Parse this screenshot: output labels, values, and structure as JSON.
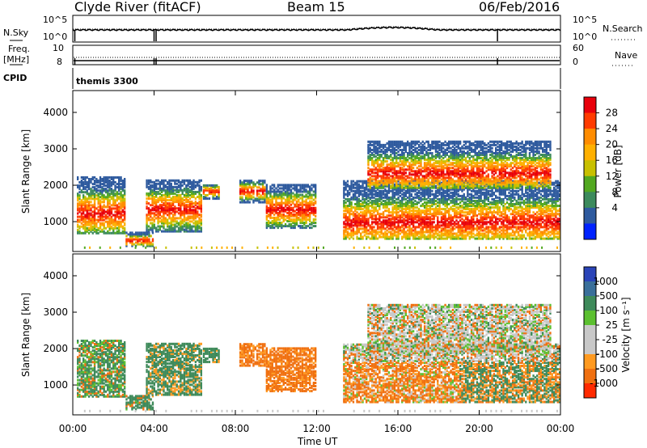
{
  "header": {
    "station": "Clyde River (fitACF)",
    "beam": "Beam 15",
    "date": "06/Feb/2016"
  },
  "top_panels": {
    "nsky_label": "N.Sky",
    "nsky_ticks": [
      "10^5",
      "10^0"
    ],
    "nsearch_label": "N.Search",
    "nsearch_ticks": [
      "10^5",
      "10^0"
    ],
    "freq_label": "Freq.",
    "freq_unit": "[MHz]",
    "freq_ticks": [
      "10",
      "8"
    ],
    "nave_label": "Nave",
    "nave_ticks": [
      "60",
      "0"
    ],
    "cpid_label": "CPID",
    "cpid_value": "themis 3300"
  },
  "time_axis": {
    "label": "Time UT",
    "ticks": [
      "00:00",
      "04:00",
      "08:00",
      "12:00",
      "16:00",
      "20:00",
      "00:00"
    ]
  },
  "chart_data": [
    {
      "type": "heatmap",
      "panel": "power",
      "ylabel": "Slant Range [km]",
      "yticks": [
        "1000",
        "2000",
        "3000",
        "4000"
      ],
      "ylim": [
        180,
        4600
      ],
      "xlim_hours": [
        0,
        24
      ],
      "colorbar": {
        "label": "Power [dB]",
        "ticks": [
          "28",
          "24",
          "20",
          "16",
          "12",
          "8",
          "4"
        ],
        "colors_top_to_bottom": [
          "#e8000b",
          "#ff3b00",
          "#ff8c00",
          "#ffb000",
          "#c8c000",
          "#52a820",
          "#3c8a5c",
          "#2e5a9e",
          "#0022ff"
        ]
      },
      "scatter_regions": [
        {
          "t0": 0.2,
          "t1": 2.6,
          "r0": 650,
          "r1": 2200,
          "core": 1200
        },
        {
          "t0": 2.6,
          "t1": 3.9,
          "r0": 300,
          "r1": 700,
          "core": 450
        },
        {
          "t0": 3.6,
          "t1": 6.3,
          "r0": 700,
          "r1": 2100,
          "core": 1300
        },
        {
          "t0": 6.4,
          "t1": 7.2,
          "r0": 1600,
          "r1": 2000,
          "core": 1800
        },
        {
          "t0": 8.2,
          "t1": 9.4,
          "r0": 1500,
          "r1": 2100,
          "core": 1800
        },
        {
          "t0": 9.5,
          "t1": 11.9,
          "r0": 800,
          "r1": 2000,
          "core": 1300
        },
        {
          "t0": 13.3,
          "t1": 24.0,
          "r0": 500,
          "r1": 2100,
          "core": 950
        },
        {
          "t0": 14.5,
          "t1": 23.5,
          "r0": 1900,
          "r1": 3200,
          "core": 2300
        }
      ]
    },
    {
      "type": "heatmap",
      "panel": "velocity",
      "ylabel": "Slant Range [km]",
      "yticks": [
        "1000",
        "2000",
        "3000",
        "4000"
      ],
      "ylim": [
        180,
        4600
      ],
      "xlim_hours": [
        0,
        24
      ],
      "colorbar": {
        "label": "Velocity [m s⁻¹]",
        "ticks": [
          "1000",
          "500",
          "100",
          "25",
          "-25",
          "-100",
          "-500",
          "-1000"
        ],
        "colors_top_to_bottom": [
          "#2a44b8",
          "#3a6f9a",
          "#3e8a5a",
          "#5cc030",
          "#c8c8c8",
          "#c8c8c8",
          "#ff9a20",
          "#f07010",
          "#ff2a00"
        ]
      }
    }
  ]
}
